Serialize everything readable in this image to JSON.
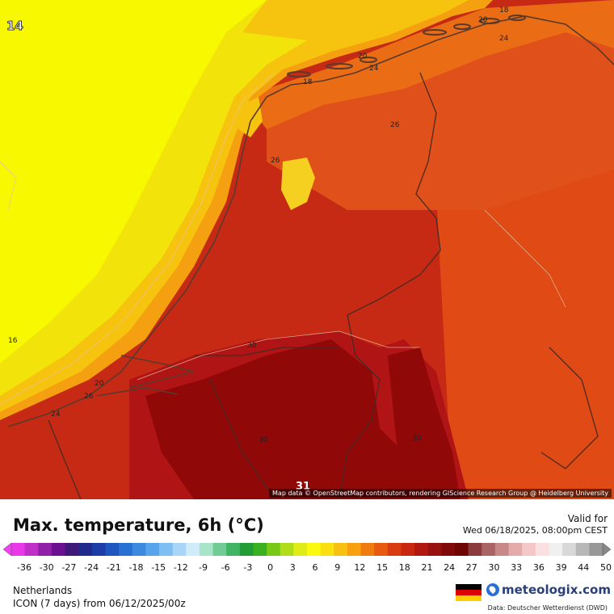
{
  "map": {
    "attribution": "Map data © OpenStreetMap contributors, rendering GIScience Research Group @ Heidelberg University",
    "corner_label": "14",
    "peak_label": "31",
    "contour_labels": [
      "18",
      "20",
      "24",
      "20",
      "24",
      "18",
      "26",
      "26",
      "16",
      "20",
      "26",
      "24",
      "30",
      "30",
      "30"
    ]
  },
  "header": {
    "title": "Max. temperature, 6h (°C)",
    "valid_label": "Valid for",
    "valid_time": "Wed 06/18/2025, 08:00pm CEST"
  },
  "colorbar": {
    "ticks": [
      "-36",
      "-30",
      "-27",
      "-24",
      "-21",
      "-18",
      "-15",
      "-12",
      "-9",
      "-6",
      "-3",
      "0",
      "3",
      "6",
      "9",
      "12",
      "15",
      "18",
      "21",
      "24",
      "27",
      "30",
      "33",
      "36",
      "39",
      "44",
      "50"
    ],
    "colors": [
      "#e838e8",
      "#c030c8",
      "#9020a8",
      "#6a1090",
      "#401878",
      "#202a8c",
      "#1c3ca8",
      "#1e56c0",
      "#2870d4",
      "#3c8ae0",
      "#58a4ec",
      "#7ebef2",
      "#a8d6f8",
      "#d0ecfa",
      "#a8e4c8",
      "#70cc94",
      "#40b464",
      "#229c34",
      "#38b020",
      "#78c818",
      "#b0dc18",
      "#e0ec18",
      "#fafa10",
      "#fae010",
      "#f8c010",
      "#f8a010",
      "#f07c10",
      "#e85a10",
      "#d83c10",
      "#c82810",
      "#b01810",
      "#981010",
      "#800808",
      "#6e0404",
      "#8a3c3c",
      "#aa6464",
      "#c88888",
      "#e4aaaa",
      "#f4c8c8",
      "#fae0e0",
      "#f0f0f0",
      "#d8d8d8",
      "#b8b8b8",
      "#989898"
    ]
  },
  "footer": {
    "region": "Netherlands",
    "model": "ICON (7 days)  from  06/12/2025/00z",
    "brand": "meteologix.com",
    "data_source": "Data: Deutscher Wetterdienst  (DWD)"
  },
  "flag_colors": [
    "#000000",
    "#dd0000",
    "#ffce00"
  ],
  "colors": {
    "t14": "#f8f800",
    "t16": "#f2e40a",
    "t18": "#f6c40e",
    "t20": "#f4a010",
    "t24": "#ea6c14",
    "t26": "#e04a14",
    "t28": "#cc2a14",
    "t30": "#b01414",
    "t31": "#900808"
  }
}
